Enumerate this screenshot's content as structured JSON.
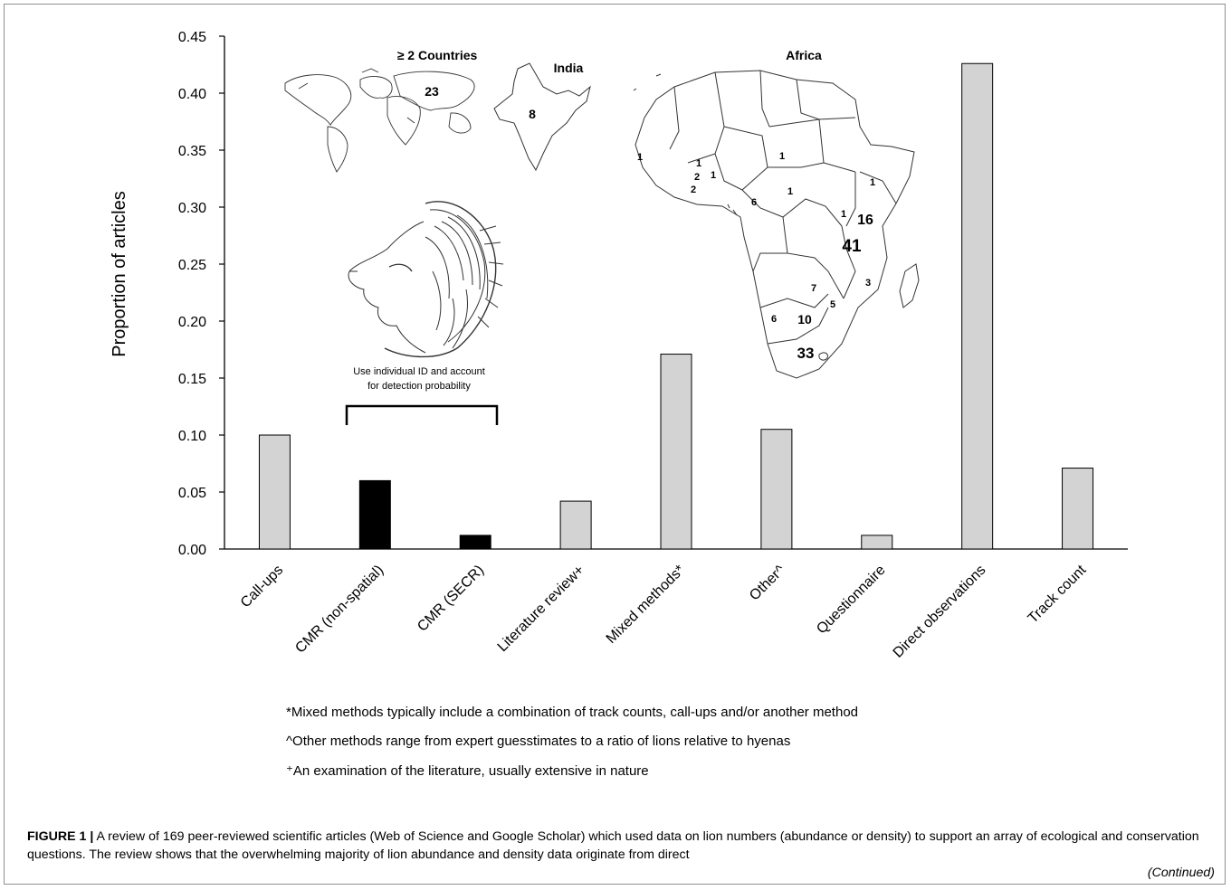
{
  "chart_data": {
    "type": "bar",
    "ylabel": "Proportion of articles",
    "xlabel": "",
    "ylim": [
      0,
      0.45
    ],
    "yticks": [
      "0.00",
      "0.05",
      "0.10",
      "0.15",
      "0.20",
      "0.25",
      "0.30",
      "0.35",
      "0.40",
      "0.45"
    ],
    "categories": [
      "Call-ups",
      "CMR (non-spatial)",
      "CMR (SECR)",
      "Literature review+",
      "Mixed methods*",
      "Other^",
      "Questionnaire",
      "Direct observations",
      "Track count"
    ],
    "values": [
      0.1,
      0.06,
      0.012,
      0.042,
      0.171,
      0.105,
      0.012,
      0.426,
      0.071
    ],
    "highlighted": [
      "CMR (non-spatial)",
      "CMR (SECR)"
    ],
    "colors": {
      "default_bar": "#d3d3d3",
      "highlight_bar": "#000000"
    },
    "bracket_annotation": [
      "Use individual ID and account",
      "for detection probability"
    ],
    "grid": false,
    "legend": "none"
  },
  "inset_maps": {
    "world": {
      "title": "≥ 2 Countries",
      "count": "23"
    },
    "india": {
      "title": "India",
      "count": "8"
    },
    "africa": {
      "title": "Africa",
      "counts": [
        "1",
        "1",
        "1",
        "2",
        "2",
        "1",
        "1",
        "1",
        "6",
        "1",
        "16",
        "41",
        "7",
        "3",
        "5",
        "6",
        "10",
        "33"
      ]
    },
    "lion_icon": "lion-head-sketch"
  },
  "footnotes": [
    "*Mixed methods typically include a combination of track counts, call-ups and/or another method",
    "^Other methods range from expert guesstimates to a ratio of lions relative to hyenas",
    "⁺An examination of the literature, usually extensive in nature"
  ],
  "caption": {
    "label": "FIGURE 1 |",
    "text": "A review of 169 peer-reviewed scientific articles (Web of Science and Google Scholar) which used data on lion numbers (abundance or density) to support an array of ecological and conservation questions. The review shows that the overwhelming majority of lion abundance and density data originate from direct",
    "continued": "(Continued)"
  }
}
